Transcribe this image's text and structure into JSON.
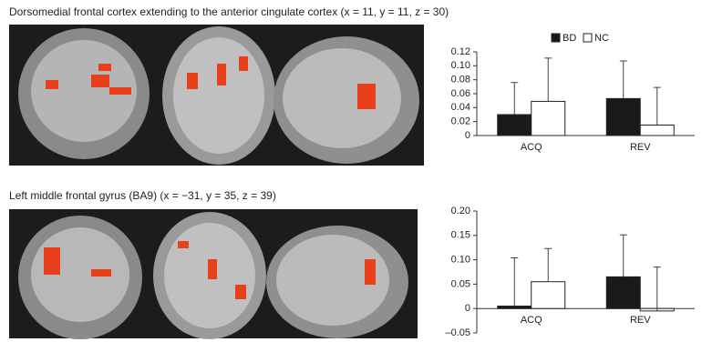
{
  "chart_data": [
    {
      "type": "bar",
      "title": "Dorsomedial frontal cortex extending to the anterior cingulate cortex (x = 11, y = 11, z = 30)",
      "categories": [
        "ACQ",
        "REV"
      ],
      "series": [
        {
          "name": "BD",
          "color": "#1a1a1a",
          "values": [
            0.03,
            0.053
          ],
          "errors": [
            0.046,
            0.054
          ]
        },
        {
          "name": "NC",
          "color": "#ffffff",
          "values": [
            0.049,
            0.015
          ],
          "errors": [
            0.062,
            0.054
          ]
        }
      ],
      "ylim": [
        0,
        0.12
      ],
      "yticks": [
        0,
        0.02,
        0.04,
        0.06,
        0.08,
        {
          "value": 0.1,
          "label": "0.10"
        },
        0.12
      ],
      "legend": "top"
    },
    {
      "type": "bar",
      "title": "Left middle frontal gyrus (BA9) (x = −31, y = 35, z = 39)",
      "categories": [
        "ACQ",
        "REV"
      ],
      "series": [
        {
          "color": "#1a1a1a",
          "values": [
            0.005,
            0.065
          ],
          "errors": [
            0.099,
            0.086
          ]
        },
        {
          "color": "#ffffff",
          "values": [
            0.055,
            -0.005
          ],
          "errors": [
            0.068,
            0.09
          ]
        }
      ],
      "ylim": [
        -0.05,
        0.2
      ],
      "yticks": [
        {
          "value": -0.05,
          "label": "–0.05"
        },
        0,
        0.05,
        {
          "value": 0.1,
          "label": "0.10"
        },
        0.15,
        {
          "value": 0.2,
          "label": "0.20"
        }
      ]
    }
  ]
}
